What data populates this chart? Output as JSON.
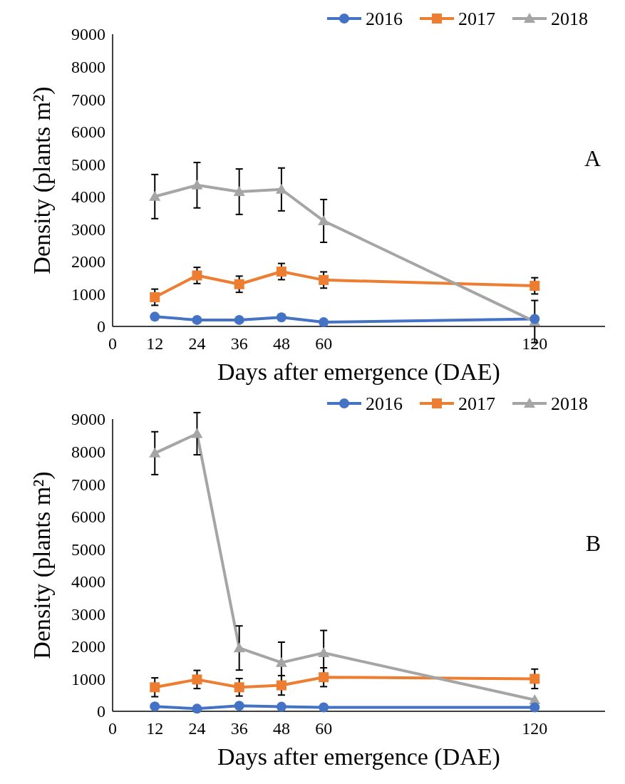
{
  "chart_data": [
    {
      "type": "line",
      "xlabel": "Days after emergence (DAE)",
      "ylabel": "Density (plants m²)",
      "annotations": [
        "A"
      ],
      "x": [
        12,
        24,
        36,
        48,
        60,
        120
      ],
      "xlim": [
        0,
        140
      ],
      "xticks": [
        0,
        12,
        24,
        36,
        48,
        60,
        120
      ],
      "ylim": [
        0,
        9000
      ],
      "yticks": [
        0,
        1000,
        2000,
        3000,
        4000,
        5000,
        6000,
        7000,
        8000,
        9000
      ],
      "grid": false,
      "legend": "top right",
      "series": [
        {
          "name": "2016",
          "color": "#4472c4",
          "marker": "circle",
          "values": [
            300,
            200,
            200,
            280,
            130,
            230
          ]
        },
        {
          "name": "2017",
          "color": "#ed7d31",
          "marker": "square",
          "values": [
            900,
            1570,
            1300,
            1690,
            1430,
            1250
          ],
          "errors": [
            250,
            250,
            250,
            250,
            250,
            250
          ]
        },
        {
          "name": "2018",
          "color": "#a5a5a5",
          "marker": "triangle",
          "values": [
            4000,
            4350,
            4150,
            4220,
            3250,
            150
          ],
          "errors": [
            680,
            700,
            700,
            660,
            660,
            650
          ]
        }
      ]
    },
    {
      "type": "line",
      "xlabel": "Days after emergence (DAE)",
      "ylabel": "Density (plants m²)",
      "annotations": [
        "B"
      ],
      "x": [
        12,
        24,
        36,
        48,
        60,
        120
      ],
      "xlim": [
        0,
        140
      ],
      "xticks": [
        0,
        12,
        24,
        36,
        48,
        60,
        120
      ],
      "ylim": [
        0,
        9000
      ],
      "yticks": [
        0,
        1000,
        2000,
        3000,
        4000,
        5000,
        6000,
        7000,
        8000,
        9000
      ],
      "grid": false,
      "legend": "top right",
      "series": [
        {
          "name": "2016",
          "color": "#4472c4",
          "marker": "circle",
          "values": [
            150,
            80,
            170,
            140,
            120,
            120
          ]
        },
        {
          "name": "2017",
          "color": "#ed7d31",
          "marker": "square",
          "values": [
            740,
            980,
            740,
            800,
            1050,
            1000
          ],
          "errors": [
            290,
            280,
            270,
            300,
            290,
            300
          ]
        },
        {
          "name": "2018",
          "color": "#a5a5a5",
          "marker": "triangle",
          "values": [
            7950,
            8550,
            1950,
            1500,
            1800,
            350
          ],
          "errors": [
            660,
            650,
            680,
            630,
            690,
            null
          ]
        }
      ]
    }
  ]
}
